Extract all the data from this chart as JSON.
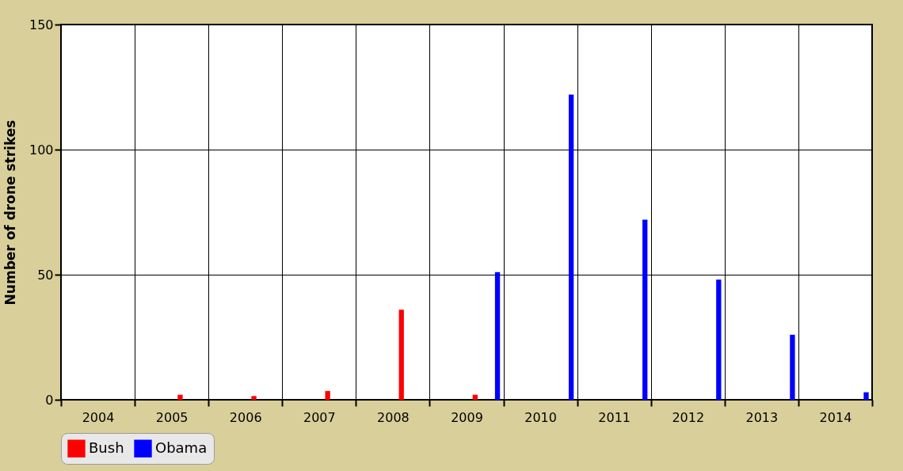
{
  "chart_data": {
    "type": "bar",
    "ylabel": "Number of drone strikes",
    "categories": [
      "2004",
      "2005",
      "2006",
      "2007",
      "2008",
      "2009",
      "2010",
      "2011",
      "2012",
      "2013",
      "2014"
    ],
    "series": [
      {
        "name": "Bush",
        "color": "#ff0000",
        "values": [
          null,
          2,
          1.5,
          3.5,
          36,
          2,
          null,
          null,
          null,
          null,
          null
        ]
      },
      {
        "name": "Obama",
        "color": "#0000ff",
        "values": [
          null,
          null,
          null,
          null,
          null,
          51,
          122,
          72,
          48,
          26,
          3
        ]
      }
    ],
    "ylim": [
      0,
      150
    ],
    "yticks": [
      0,
      50,
      100,
      150
    ],
    "grid": true,
    "legend": "bottom"
  }
}
